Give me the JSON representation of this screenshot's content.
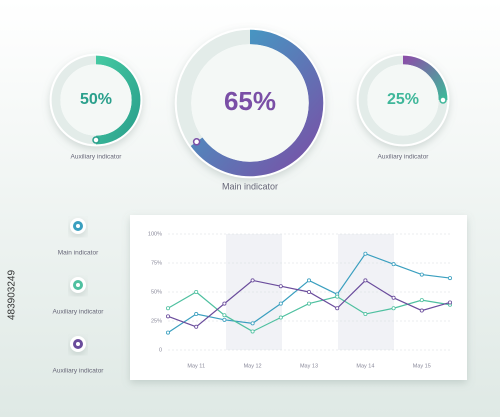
{
  "chart_data": [
    {
      "type": "gauge",
      "label": "Auxiliary indicator",
      "values": [
        50
      ],
      "value_labels": [
        "50%"
      ],
      "colors": [
        "#45c9a2",
        "#2aa08c"
      ]
    },
    {
      "type": "gauge",
      "label": "Main indicator",
      "values": [
        65
      ],
      "value_labels": [
        "65%"
      ],
      "colors": [
        "#3aa7c9",
        "#7a4fa6"
      ]
    },
    {
      "type": "gauge",
      "label": "Auxiliary indicator",
      "values": [
        25
      ],
      "value_labels": [
        "25%"
      ],
      "colors": [
        "#8a4fa8",
        "#3fb79a"
      ]
    },
    {
      "type": "line",
      "categories": [
        null,
        "May 11",
        null,
        "May 12",
        null,
        "May 13",
        null,
        "May 14",
        null,
        "May 15",
        null
      ],
      "ylim": [
        0,
        100
      ],
      "yticks": [
        0,
        {
          "value": 25,
          "label": "25%"
        },
        {
          "value": 50,
          "label": "50%"
        },
        {
          "value": 75,
          "label": "75%"
        },
        {
          "value": 100,
          "label": "100%"
        }
      ],
      "grid": true,
      "series": [
        {
          "name": "Main indicator",
          "color": "#3a9fbf",
          "values": [
            15,
            31,
            26,
            23,
            40,
            60,
            48,
            83,
            74,
            65,
            62
          ]
        },
        {
          "name": "Auxiliary indicator",
          "color": "#4fc0a0",
          "values": [
            36,
            50,
            30,
            16,
            28,
            40,
            46,
            31,
            36,
            43,
            39
          ]
        },
        {
          "name": "Auxiliary indicator",
          "color": "#6a4c9c",
          "values": [
            29,
            20,
            40,
            60,
            55,
            50,
            36,
            60,
            45,
            34,
            41
          ]
        }
      ]
    }
  ],
  "watermark": "483903249"
}
